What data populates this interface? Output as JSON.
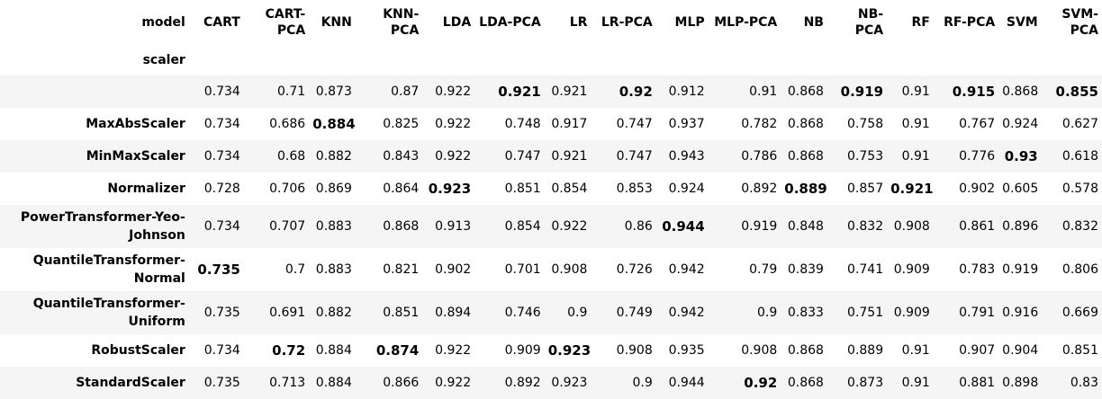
{
  "table": {
    "corner_labels": {
      "model": "model",
      "scaler": "scaler"
    },
    "columns": [
      "CART",
      "CART-PCA",
      "KNN",
      "KNN-PCA",
      "LDA",
      "LDA-PCA",
      "LR",
      "LR-PCA",
      "MLP",
      "MLP-PCA",
      "NB",
      "NB-PCA",
      "RF",
      "RF-PCA",
      "SVM",
      "SVM-PCA"
    ],
    "rows": [
      {
        "label": "",
        "values": [
          "0.734",
          "0.71",
          "0.873",
          "0.87",
          "0.922",
          "0.921",
          "0.921",
          "0.92",
          "0.912",
          "0.91",
          "0.868",
          "0.919",
          "0.91",
          "0.915",
          "0.868",
          "0.855"
        ],
        "bold": [
          false,
          false,
          false,
          false,
          false,
          true,
          false,
          true,
          false,
          false,
          false,
          true,
          false,
          true,
          false,
          true
        ]
      },
      {
        "label": "MaxAbsScaler",
        "values": [
          "0.734",
          "0.686",
          "0.884",
          "0.825",
          "0.922",
          "0.748",
          "0.917",
          "0.747",
          "0.937",
          "0.782",
          "0.868",
          "0.758",
          "0.91",
          "0.767",
          "0.924",
          "0.627"
        ],
        "bold": [
          false,
          false,
          true,
          false,
          false,
          false,
          false,
          false,
          false,
          false,
          false,
          false,
          false,
          false,
          false,
          false
        ]
      },
      {
        "label": "MinMaxScaler",
        "values": [
          "0.734",
          "0.68",
          "0.882",
          "0.843",
          "0.922",
          "0.747",
          "0.921",
          "0.747",
          "0.943",
          "0.786",
          "0.868",
          "0.753",
          "0.91",
          "0.776",
          "0.93",
          "0.618"
        ],
        "bold": [
          false,
          false,
          false,
          false,
          false,
          false,
          false,
          false,
          false,
          false,
          false,
          false,
          false,
          false,
          true,
          false
        ]
      },
      {
        "label": "Normalizer",
        "values": [
          "0.728",
          "0.706",
          "0.869",
          "0.864",
          "0.923",
          "0.851",
          "0.854",
          "0.853",
          "0.924",
          "0.892",
          "0.889",
          "0.857",
          "0.921",
          "0.902",
          "0.605",
          "0.578"
        ],
        "bold": [
          false,
          false,
          false,
          false,
          true,
          false,
          false,
          false,
          false,
          false,
          true,
          false,
          true,
          false,
          false,
          false
        ]
      },
      {
        "label": "PowerTransformer-Yeo-Johnson",
        "values": [
          "0.734",
          "0.707",
          "0.883",
          "0.868",
          "0.913",
          "0.854",
          "0.922",
          "0.86",
          "0.944",
          "0.919",
          "0.848",
          "0.832",
          "0.908",
          "0.861",
          "0.896",
          "0.832"
        ],
        "bold": [
          false,
          false,
          false,
          false,
          false,
          false,
          false,
          false,
          true,
          false,
          false,
          false,
          false,
          false,
          false,
          false
        ]
      },
      {
        "label": "QuantileTransformer-Normal",
        "values": [
          "0.735",
          "0.7",
          "0.883",
          "0.821",
          "0.902",
          "0.701",
          "0.908",
          "0.726",
          "0.942",
          "0.79",
          "0.839",
          "0.741",
          "0.909",
          "0.783",
          "0.919",
          "0.806"
        ],
        "bold": [
          true,
          false,
          false,
          false,
          false,
          false,
          false,
          false,
          false,
          false,
          false,
          false,
          false,
          false,
          false,
          false
        ]
      },
      {
        "label": "QuantileTransformer-Uniform",
        "values": [
          "0.735",
          "0.691",
          "0.882",
          "0.851",
          "0.894",
          "0.746",
          "0.9",
          "0.749",
          "0.942",
          "0.9",
          "0.833",
          "0.751",
          "0.909",
          "0.791",
          "0.916",
          "0.669"
        ],
        "bold": [
          false,
          false,
          false,
          false,
          false,
          false,
          false,
          false,
          false,
          false,
          false,
          false,
          false,
          false,
          false,
          false
        ]
      },
      {
        "label": "RobustScaler",
        "values": [
          "0.734",
          "0.72",
          "0.884",
          "0.874",
          "0.922",
          "0.909",
          "0.923",
          "0.908",
          "0.935",
          "0.908",
          "0.868",
          "0.889",
          "0.91",
          "0.907",
          "0.904",
          "0.851"
        ],
        "bold": [
          false,
          true,
          false,
          true,
          false,
          false,
          true,
          false,
          false,
          false,
          false,
          false,
          false,
          false,
          false,
          false
        ]
      },
      {
        "label": "StandardScaler",
        "values": [
          "0.735",
          "0.713",
          "0.884",
          "0.866",
          "0.922",
          "0.892",
          "0.923",
          "0.9",
          "0.944",
          "0.92",
          "0.868",
          "0.873",
          "0.91",
          "0.881",
          "0.898",
          "0.83"
        ],
        "bold": [
          false,
          false,
          false,
          false,
          false,
          false,
          false,
          false,
          false,
          true,
          false,
          false,
          false,
          false,
          false,
          false
        ]
      }
    ]
  }
}
